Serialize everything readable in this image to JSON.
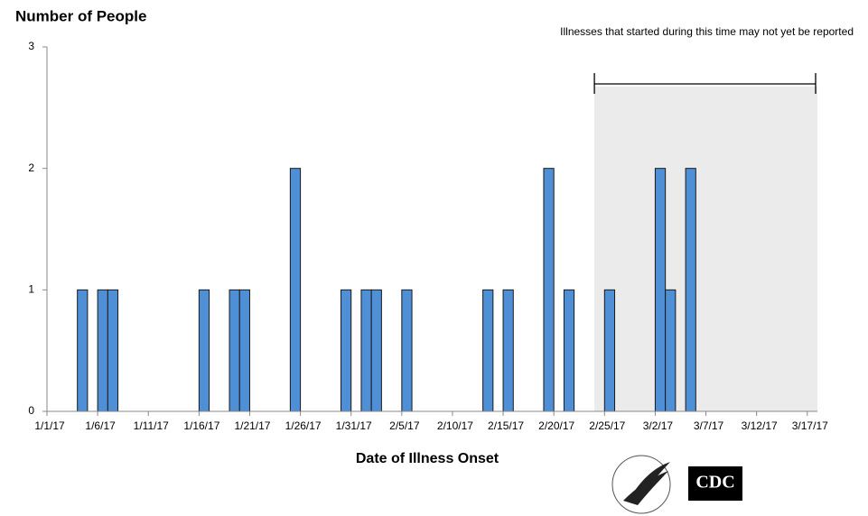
{
  "chart_data": {
    "type": "bar",
    "title": "Number of People",
    "x_label": "Date of Illness Onset",
    "annotation": "Illnesses that started during this time may not yet be reported",
    "reporting_delay_start": "2/24/17",
    "x": [
      "1/4/17",
      "1/6/17",
      "1/7/17",
      "1/16/17",
      "1/19/17",
      "1/20/17",
      "1/25/17",
      "1/30/17",
      "2/1/17",
      "2/2/17",
      "2/5/17",
      "2/13/17",
      "2/15/17",
      "2/19/17",
      "2/21/17",
      "2/25/17",
      "3/2/17",
      "3/3/17",
      "3/5/17"
    ],
    "values": [
      1,
      1,
      1,
      1,
      1,
      1,
      2,
      1,
      1,
      1,
      1,
      1,
      1,
      2,
      1,
      1,
      2,
      1,
      2
    ],
    "color": "#4f8fd6",
    "xlim": [
      "1/1/17",
      "3/18/17"
    ],
    "xticks": [
      "1/1/17",
      "1/6/17",
      "1/11/17",
      "1/16/17",
      "1/21/17",
      "1/26/17",
      "1/31/17",
      "2/5/17",
      "2/10/17",
      "2/15/17",
      "2/20/17",
      "2/25/17",
      "3/2/17",
      "3/7/17",
      "3/12/17",
      "3/17/17"
    ],
    "ylim": [
      0,
      3
    ],
    "yticks": [
      0,
      1,
      2,
      3
    ],
    "grid": false,
    "logo_text": "CDC"
  }
}
